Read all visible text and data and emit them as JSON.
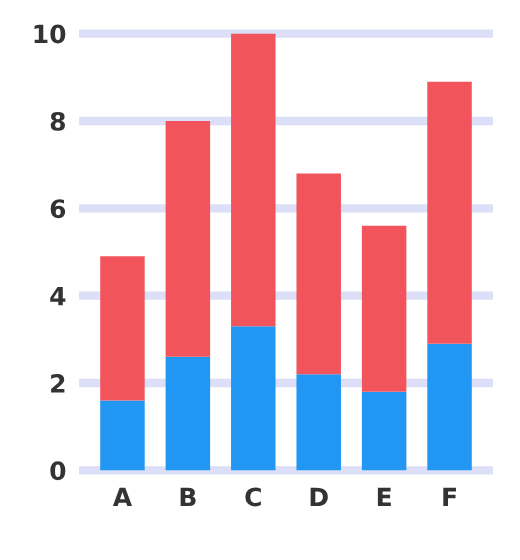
{
  "chart_data": {
    "type": "bar",
    "stacked": true,
    "categories": [
      "A",
      "B",
      "C",
      "D",
      "E",
      "F"
    ],
    "series": [
      {
        "color": "#2196f3",
        "values": [
          1.6,
          2.6,
          3.3,
          2.2,
          1.8,
          2.9
        ]
      },
      {
        "color": "#f2545b",
        "values": [
          3.3,
          5.4,
          6.7,
          4.6,
          3.8,
          6.0
        ]
      }
    ],
    "ylim": [
      0,
      10
    ],
    "yticks": [
      0,
      2,
      4,
      6,
      8,
      10
    ],
    "grid": "y"
  }
}
